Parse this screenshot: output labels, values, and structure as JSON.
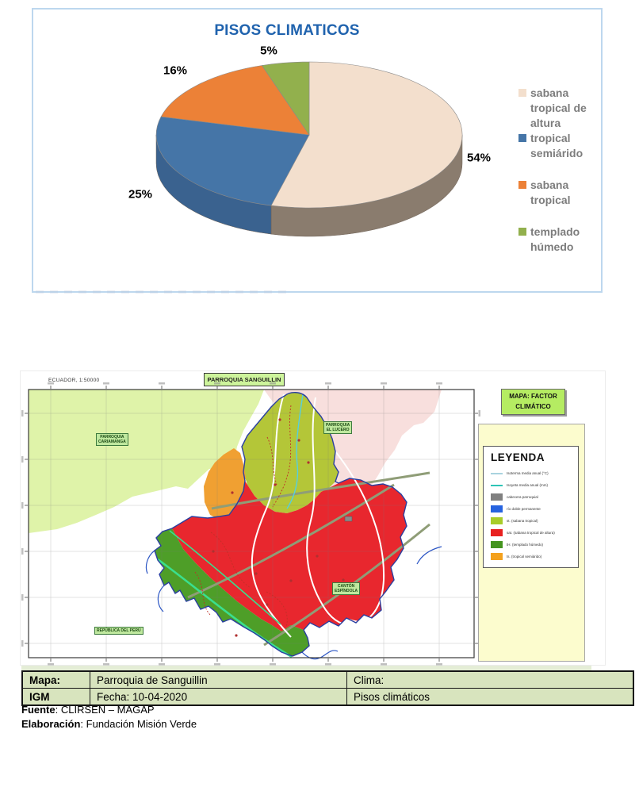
{
  "chart_data": {
    "type": "pie",
    "title": "PISOS CLIMATICOS",
    "categories": [
      "sabana tropical de altura",
      "tropical semiárido",
      "sabana tropical",
      "templado húmedo"
    ],
    "values": [
      54,
      25,
      16,
      5
    ],
    "value_labels": [
      "54%",
      "25%",
      "16%",
      "5%"
    ],
    "colors": [
      "#F3DFCD",
      "#4575A7",
      "#EC8137",
      "#92B04D"
    ],
    "side_colors": [
      "#8A7C6E",
      "#3A628F",
      "#A85A20",
      "#5E7A2E"
    ],
    "title_color": "#2063AE",
    "effect": "3d-pie",
    "legend_position": "right",
    "start_angle_deg": -90,
    "direction": "clockwise"
  },
  "map": {
    "scale_text": "ECUADOR, 1:50000",
    "title": "PARROQUIA SANGUILLIN",
    "corner_label_line1": "MAPA: FACTOR",
    "corner_label_line2": "CLIMÁTICO",
    "area_labels": [
      {
        "line1": "PARROQUIA",
        "line2": "CARIAMANGA"
      },
      {
        "line1": "PARROQUIA",
        "line2": "EL LUCERO"
      },
      {
        "line1": "CANTÓN",
        "line2": "ESPÍNDOLA"
      },
      {
        "line1": "REPÚBLICA DEL PERÚ",
        "line2": ""
      }
    ],
    "legend": {
      "title": "LEYENDA",
      "items": [
        {
          "type": "line",
          "color": "#A9D3DF",
          "label": "Isoterma media anual (°C)"
        },
        {
          "type": "line",
          "color": "#2EC4B6",
          "label": "Isoyeta media anual (mm)"
        },
        {
          "type": "rect",
          "color": "#808080",
          "label": "cabecera parroquial"
        },
        {
          "type": "rect",
          "color": "#2663E0",
          "label": "río doble permanente"
        },
        {
          "type": "rect",
          "color": "#A8CC29",
          "label": "st. (sabana tropical)"
        },
        {
          "type": "rect",
          "color": "#E8201F",
          "label": "sat. (sabana tropical de altura)"
        },
        {
          "type": "rect",
          "color": "#44941F",
          "label": "tH. (templado húmedo)"
        },
        {
          "type": "rect",
          "color": "#F4A11D",
          "label": "ts. (tropical semiárido)"
        }
      ]
    },
    "colors": {
      "neighbor_green": "#DFF3A9",
      "neighbor_pink": "#F8DFDD",
      "st": "#B4C638",
      "sat": "#E8272E",
      "th": "#4E9E28",
      "ts": "#F0A032",
      "boundary": "#2A3FA0",
      "river": "#2B55C4",
      "isotherm": "#FFFFFF",
      "isoyeta_cyan": "#55CFE0",
      "isoyeta_green": "#3ADF8E",
      "road": "#8F9D77",
      "trail": "#C03028"
    }
  },
  "info_table": {
    "rows": [
      {
        "c1": "Mapa:",
        "c2": "Parroquia de Sanguillin",
        "c3": "Clima:"
      },
      {
        "c1": "IGM",
        "c2": "Fecha: 10-04-2020",
        "c3": "Pisos climáticos"
      }
    ]
  },
  "captions": {
    "fuente_label": "Fuente",
    "fuente_value": ": CLIRSEN – MAGAP",
    "elaboracion_label": "Elaboración",
    "elaboracion_value": ": Fundación Misión Verde"
  }
}
